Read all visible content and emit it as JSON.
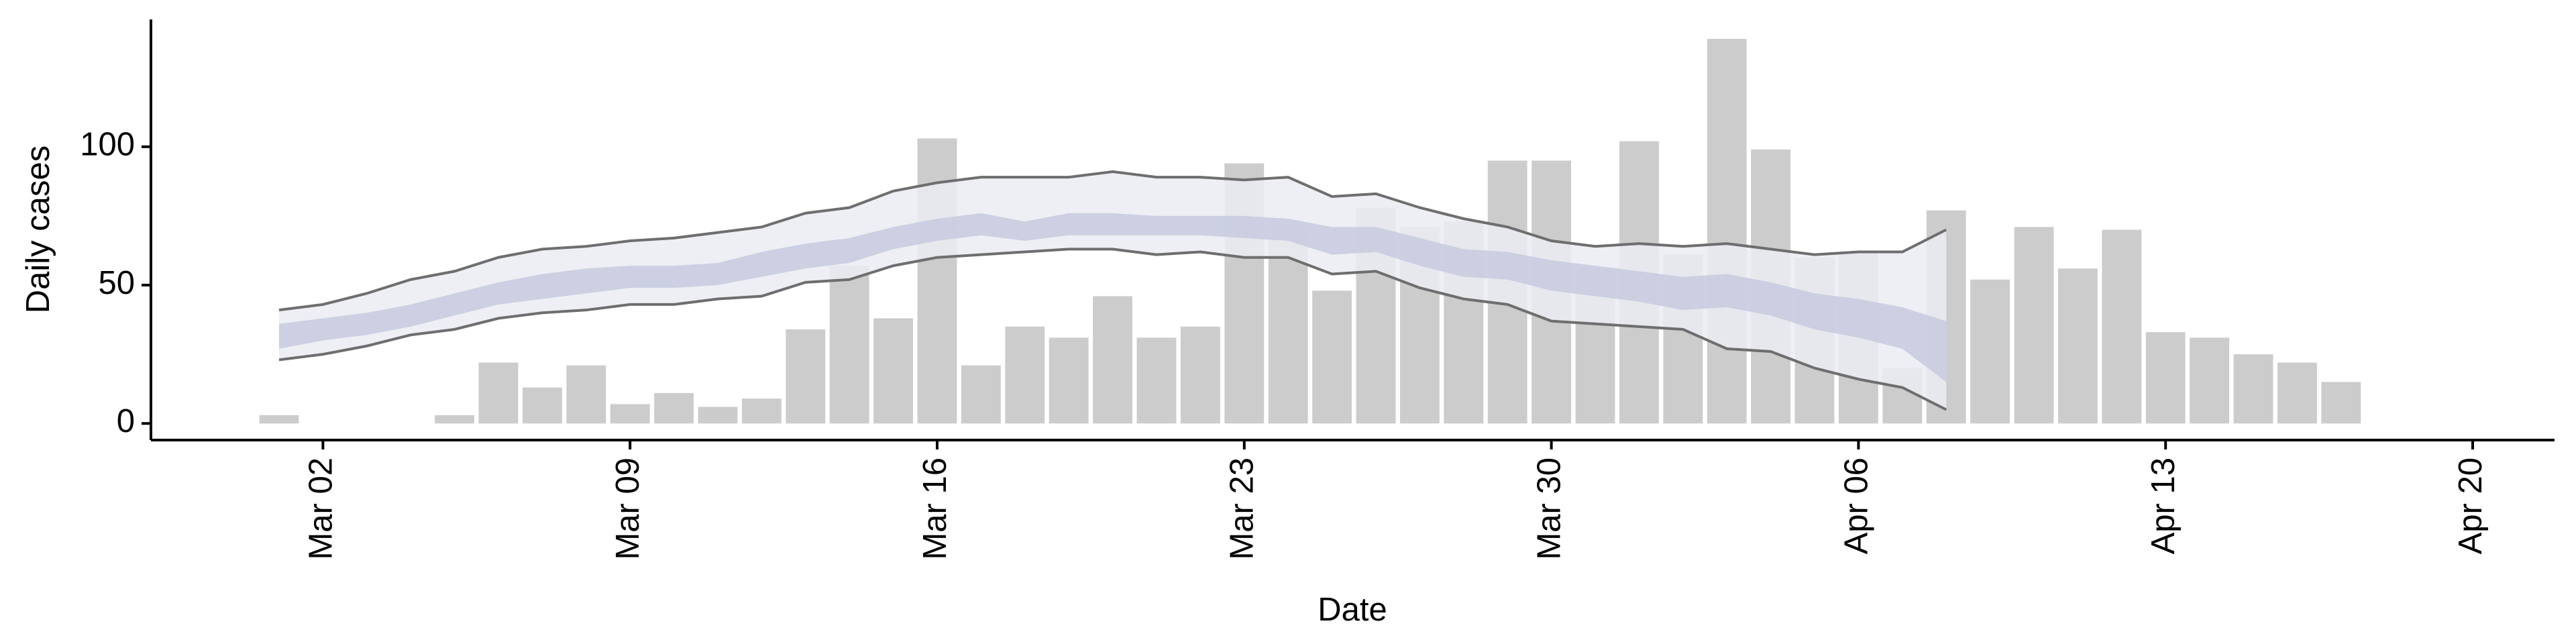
{
  "chart_data": {
    "type": "bar",
    "x_label": "Date",
    "y_label": "Daily cases",
    "x": [
      "Mar 01",
      "Mar 02",
      "Mar 03",
      "Mar 04",
      "Mar 05",
      "Mar 06",
      "Mar 07",
      "Mar 08",
      "Mar 09",
      "Mar 10",
      "Mar 11",
      "Mar 12",
      "Mar 13",
      "Mar 14",
      "Mar 15",
      "Mar 16",
      "Mar 17",
      "Mar 18",
      "Mar 19",
      "Mar 20",
      "Mar 21",
      "Mar 22",
      "Mar 23",
      "Mar 24",
      "Mar 25",
      "Mar 26",
      "Mar 27",
      "Mar 28",
      "Mar 29",
      "Mar 30",
      "Mar 31",
      "Apr 01",
      "Apr 02",
      "Apr 03",
      "Apr 04",
      "Apr 05",
      "Apr 06",
      "Apr 07",
      "Apr 08",
      "Apr 09",
      "Apr 10",
      "Apr 11",
      "Apr 12",
      "Apr 13",
      "Apr 14",
      "Apr 15",
      "Apr 16",
      "Apr 17",
      "Apr 18",
      "Apr 19",
      "Apr 20"
    ],
    "values": [
      3,
      0,
      0,
      0,
      3,
      22,
      13,
      21,
      7,
      11,
      6,
      9,
      34,
      57,
      38,
      103,
      21,
      35,
      31,
      46,
      31,
      35,
      94,
      71,
      48,
      78,
      71,
      73,
      95,
      95,
      56,
      102,
      61,
      139,
      99,
      60,
      62,
      20,
      77,
      52,
      71,
      56,
      70,
      33,
      31,
      25,
      22,
      15,
      null,
      null,
      null
    ],
    "color": "#cccccc",
    "bands": [
      {
        "color": "#ebecf2",
        "upper": [
          41,
          43,
          47,
          52,
          55,
          60,
          63,
          64,
          66,
          67,
          69,
          71,
          76,
          78,
          84,
          87,
          89,
          89,
          89,
          91,
          89,
          89,
          88,
          89,
          82,
          83,
          78,
          74,
          71,
          66,
          64,
          65,
          64,
          65,
          63,
          61,
          62,
          62,
          70,
          null,
          null,
          null,
          null,
          null,
          null,
          null,
          null,
          null,
          null,
          null,
          null
        ],
        "lower": [
          23,
          25,
          28,
          32,
          34,
          38,
          40,
          41,
          43,
          43,
          45,
          46,
          51,
          52,
          57,
          60,
          61,
          62,
          63,
          63,
          61,
          62,
          60,
          60,
          54,
          55,
          49,
          45,
          43,
          37,
          36,
          35,
          34,
          27,
          26,
          20,
          16,
          13,
          5,
          null,
          null,
          null,
          null,
          null,
          null,
          null,
          null,
          null,
          null,
          null,
          null
        ]
      },
      {
        "color": "#c5cade",
        "upper": [
          36,
          38,
          40,
          43,
          47,
          51,
          54,
          56,
          57,
          57,
          58,
          62,
          65,
          67,
          71,
          74,
          76,
          73,
          76,
          76,
          75,
          75,
          75,
          74,
          71,
          71,
          67,
          63,
          62,
          59,
          57,
          55,
          53,
          54,
          51,
          47,
          45,
          42,
          37,
          null,
          null,
          null,
          null,
          null,
          null,
          null,
          null,
          null,
          null,
          null,
          null
        ],
        "lower": [
          27,
          30,
          32,
          35,
          39,
          43,
          45,
          47,
          49,
          49,
          50,
          53,
          56,
          58,
          63,
          66,
          68,
          66,
          68,
          68,
          68,
          68,
          67,
          66,
          61,
          62,
          57,
          53,
          52,
          48,
          46,
          44,
          41,
          42,
          39,
          34,
          31,
          27,
          15,
          null,
          null,
          null,
          null,
          null,
          null,
          null,
          null,
          null,
          null,
          null,
          null
        ]
      }
    ],
    "line_color": "#6e6e6e",
    "ylim": [
      -6,
      146
    ],
    "yticks": [
      0,
      50,
      100
    ],
    "xticks": [
      "Mar 02",
      "Mar 09",
      "Mar 16",
      "Mar 23",
      "Mar 30",
      "Apr 06",
      "Apr 13",
      "Apr 20"
    ]
  }
}
